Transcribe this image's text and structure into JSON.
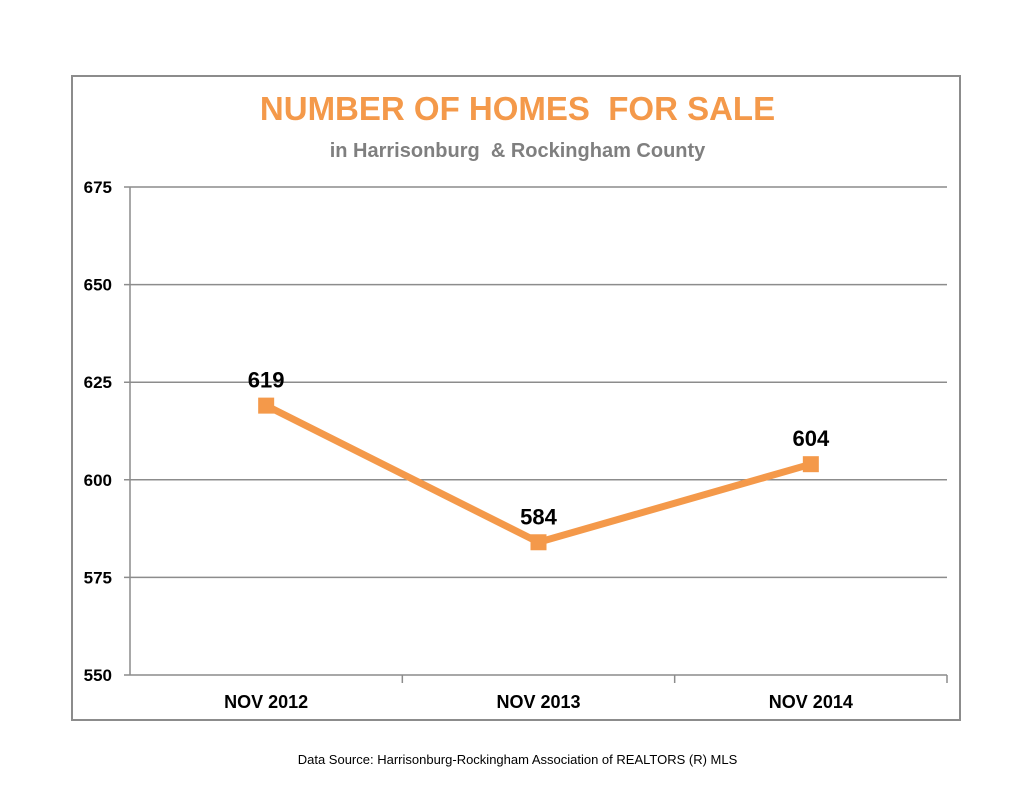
{
  "chart_data": {
    "type": "line",
    "title": "NUMBER OF HOMES  FOR SALE",
    "subtitle": "in Harrisonburg  & Rockingham County",
    "xlabel": "",
    "ylabel": "",
    "categories": [
      "NOV 2012",
      "NOV 2013",
      "NOV 2014"
    ],
    "series": [
      {
        "values": [
          619,
          584,
          604
        ],
        "data_labels": [
          "619",
          "584",
          "604"
        ]
      }
    ],
    "ylim": [
      550,
      675
    ],
    "yticks": [
      550,
      575,
      600,
      625,
      650,
      675
    ],
    "ytick_labels": [
      "550",
      "575",
      "600",
      "625",
      "650",
      "675"
    ],
    "grid": "horizontal",
    "legend": "none",
    "line_color": "#f4994a",
    "title_color": "#f4994a",
    "subtitle_color": "#7f7f7f"
  },
  "footer": {
    "data_source": "Data Source: Harrisonburg-Rockingham Association of REALTORS (R) MLS"
  }
}
